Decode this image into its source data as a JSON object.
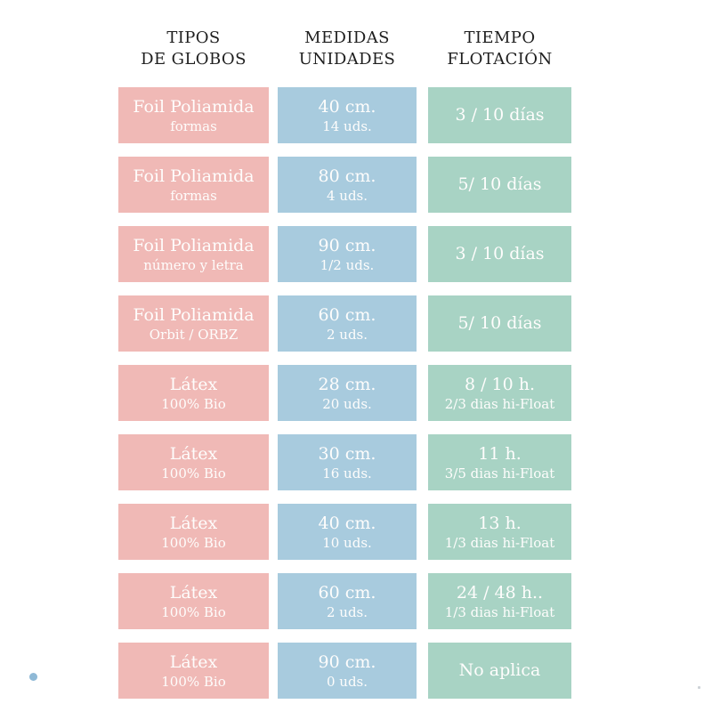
{
  "chart_data": {
    "type": "table",
    "title": "",
    "headers": [
      [
        "TIPOS",
        "DE GLOBOS"
      ],
      [
        "MEDIDAS",
        "UNIDADES"
      ],
      [
        "TIEMPO",
        "FLOTACIÓN"
      ]
    ],
    "rows": [
      {
        "tipo": [
          "Foil Poliamida",
          "formas"
        ],
        "medidas": [
          "40 cm.",
          "14 uds."
        ],
        "tiempo": [
          "3 / 10 días",
          ""
        ]
      },
      {
        "tipo": [
          "Foil Poliamida",
          "formas"
        ],
        "medidas": [
          "80 cm.",
          "4 uds."
        ],
        "tiempo": [
          "5/ 10 días",
          ""
        ]
      },
      {
        "tipo": [
          "Foil Poliamida",
          "número y letra"
        ],
        "medidas": [
          "90 cm.",
          "1/2 uds."
        ],
        "tiempo": [
          "3 / 10 días",
          ""
        ]
      },
      {
        "tipo": [
          "Foil Poliamida",
          "Orbit / ORBZ"
        ],
        "medidas": [
          "60 cm.",
          "2 uds."
        ],
        "tiempo": [
          "5/ 10 días",
          ""
        ]
      },
      {
        "tipo": [
          "Látex",
          "100% Bio"
        ],
        "medidas": [
          "28 cm.",
          "20 uds."
        ],
        "tiempo": [
          "8 / 10 h.",
          "2/3 dias hi-Float"
        ]
      },
      {
        "tipo": [
          "Látex",
          "100% Bio"
        ],
        "medidas": [
          "30 cm.",
          "16 uds."
        ],
        "tiempo": [
          "11 h.",
          "3/5 dias hi-Float"
        ]
      },
      {
        "tipo": [
          "Látex",
          "100% Bio"
        ],
        "medidas": [
          "40 cm.",
          "10 uds."
        ],
        "tiempo": [
          "13 h.",
          "1/3 dias hi-Float"
        ]
      },
      {
        "tipo": [
          "Látex",
          "100% Bio"
        ],
        "medidas": [
          "60 cm.",
          "2 uds."
        ],
        "tiempo": [
          "24 / 48 h..",
          "1/3 dias hi-Float"
        ]
      },
      {
        "tipo": [
          "Látex",
          "100% Bio"
        ],
        "medidas": [
          "90 cm.",
          "0 uds."
        ],
        "tiempo": [
          "No aplica",
          ""
        ]
      }
    ]
  },
  "colors": {
    "pink": "#f0b9b6",
    "blue": "#a8cbde",
    "green": "#a8d3c4",
    "dot": "#8fb9d6",
    "header_text": "#1e1e1e",
    "cell_text": "#fefdfc"
  }
}
